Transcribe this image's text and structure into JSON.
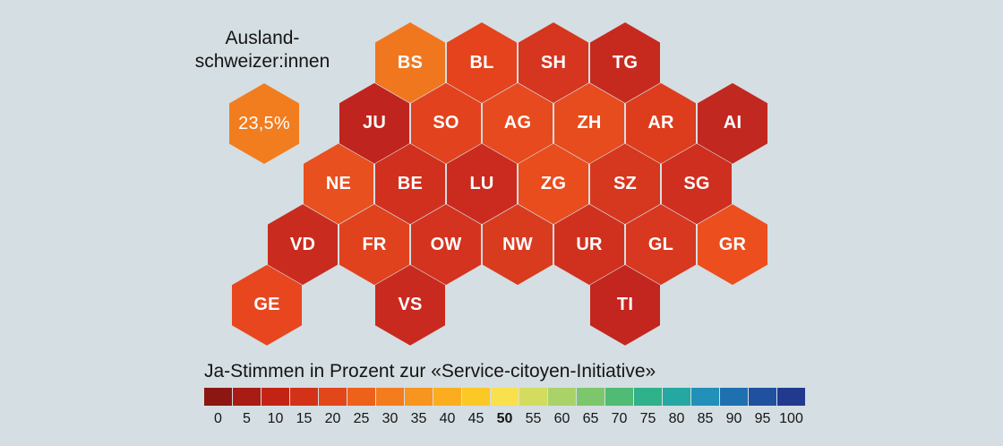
{
  "background": "#d5dee2",
  "abroad": {
    "label_line1": "Ausland-",
    "label_line2": "schweizer:innen",
    "value": "23,5%",
    "color": "#f17d1f"
  },
  "legend": {
    "title": "Ja-Stimmen in Prozent zur «Service-citoyen-Initiative»",
    "stops": [
      {
        "label": "0",
        "color": "#8c1712"
      },
      {
        "label": "5",
        "color": "#a81c14"
      },
      {
        "label": "10",
        "color": "#c22315"
      },
      {
        "label": "15",
        "color": "#d33218"
      },
      {
        "label": "20",
        "color": "#e1471a"
      },
      {
        "label": "25",
        "color": "#ed611b"
      },
      {
        "label": "30",
        "color": "#f47c1d"
      },
      {
        "label": "35",
        "color": "#f8951e"
      },
      {
        "label": "40",
        "color": "#fbad20"
      },
      {
        "label": "45",
        "color": "#fcc826"
      },
      {
        "label": "50",
        "color": "#f9e14d",
        "bold": true
      },
      {
        "label": "55",
        "color": "#d3dc5f"
      },
      {
        "label": "60",
        "color": "#a9d368"
      },
      {
        "label": "65",
        "color": "#7cc76c"
      },
      {
        "label": "70",
        "color": "#4fbb75"
      },
      {
        "label": "75",
        "color": "#2fb18a"
      },
      {
        "label": "80",
        "color": "#25a7a2"
      },
      {
        "label": "85",
        "color": "#2290b8"
      },
      {
        "label": "90",
        "color": "#1f70b0"
      },
      {
        "label": "95",
        "color": "#20519f"
      },
      {
        "label": "100",
        "color": "#213a8e"
      }
    ]
  },
  "chart_data": {
    "type": "heatmap",
    "subtype": "hexagon-tile-cartogram",
    "title": "Ja-Stimmen in Prozent zur «Service-citoyen-Initiative»",
    "unit": "percent yes votes",
    "color_scale_ticks": [
      0,
      5,
      10,
      15,
      20,
      25,
      30,
      35,
      40,
      45,
      50,
      55,
      60,
      65,
      70,
      75,
      80,
      85,
      90,
      95,
      100
    ],
    "highlighted_tick": 50,
    "abroad": {
      "label": "Auslandschweizer:innen",
      "value_pct": 23.5,
      "color": "#f17d1f"
    },
    "cantons": [
      {
        "code": "BS",
        "row": 0,
        "col": 0,
        "color": "#f1771f",
        "value_approx_pct": 25
      },
      {
        "code": "BL",
        "row": 0,
        "col": 1,
        "color": "#e4431d",
        "value_approx_pct": 20
      },
      {
        "code": "SH",
        "row": 0,
        "col": 2,
        "color": "#d6351f",
        "value_approx_pct": 16
      },
      {
        "code": "TG",
        "row": 0,
        "col": 3,
        "color": "#c62a1f",
        "value_approx_pct": 13
      },
      {
        "code": "JU",
        "row": 1,
        "col": 0,
        "color": "#bf241e",
        "value_approx_pct": 11
      },
      {
        "code": "SO",
        "row": 1,
        "col": 1,
        "color": "#e2421d",
        "value_approx_pct": 19
      },
      {
        "code": "AG",
        "row": 1,
        "col": 2,
        "color": "#e64a1e",
        "value_approx_pct": 21
      },
      {
        "code": "ZH",
        "row": 1,
        "col": 3,
        "color": "#e74c1e",
        "value_approx_pct": 21
      },
      {
        "code": "AR",
        "row": 1,
        "col": 4,
        "color": "#dd3d1d",
        "value_approx_pct": 18
      },
      {
        "code": "AI",
        "row": 1,
        "col": 5,
        "color": "#c1281f",
        "value_approx_pct": 12
      },
      {
        "code": "NE",
        "row": 2,
        "col": 0,
        "color": "#e8501f",
        "value_approx_pct": 22
      },
      {
        "code": "BE",
        "row": 2,
        "col": 1,
        "color": "#d1301f",
        "value_approx_pct": 15
      },
      {
        "code": "LU",
        "row": 2,
        "col": 2,
        "color": "#cb2b1f",
        "value_approx_pct": 14
      },
      {
        "code": "ZG",
        "row": 2,
        "col": 3,
        "color": "#e94d1e",
        "value_approx_pct": 21
      },
      {
        "code": "SZ",
        "row": 2,
        "col": 4,
        "color": "#d6371f",
        "value_approx_pct": 16
      },
      {
        "code": "SG",
        "row": 2,
        "col": 5,
        "color": "#cf2f1f",
        "value_approx_pct": 15
      },
      {
        "code": "VD",
        "row": 3,
        "col": 0,
        "color": "#c92c1f",
        "value_approx_pct": 14
      },
      {
        "code": "FR",
        "row": 3,
        "col": 1,
        "color": "#e0421e",
        "value_approx_pct": 19
      },
      {
        "code": "OW",
        "row": 3,
        "col": 2,
        "color": "#d3331f",
        "value_approx_pct": 16
      },
      {
        "code": "NW",
        "row": 3,
        "col": 3,
        "color": "#d93b1f",
        "value_approx_pct": 17
      },
      {
        "code": "UR",
        "row": 3,
        "col": 4,
        "color": "#d0311f",
        "value_approx_pct": 15
      },
      {
        "code": "GL",
        "row": 3,
        "col": 5,
        "color": "#d7381f",
        "value_approx_pct": 16
      },
      {
        "code": "GR",
        "row": 3,
        "col": 6,
        "color": "#ec4e1e",
        "value_approx_pct": 22
      },
      {
        "code": "GE",
        "row": 4,
        "col": 0,
        "color": "#e8461e",
        "value_approx_pct": 20
      },
      {
        "code": "VS",
        "row": 4,
        "col": 2,
        "color": "#c92a1f",
        "value_approx_pct": 13
      },
      {
        "code": "TI",
        "row": 4,
        "col": 5,
        "color": "#c3261f",
        "value_approx_pct": 12
      }
    ]
  }
}
